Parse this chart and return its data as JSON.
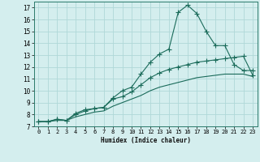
{
  "xlabel": "Humidex (Indice chaleur)",
  "ylabel": "",
  "xlim": [
    -0.5,
    23.5
  ],
  "ylim": [
    7,
    17.5
  ],
  "xticks": [
    0,
    1,
    2,
    3,
    4,
    5,
    6,
    7,
    8,
    9,
    10,
    11,
    12,
    13,
    14,
    15,
    16,
    17,
    18,
    19,
    20,
    21,
    22,
    23
  ],
  "yticks": [
    7,
    8,
    9,
    10,
    11,
    12,
    13,
    14,
    15,
    16,
    17
  ],
  "background_color": "#d4eeee",
  "grid_color": "#b0d8d8",
  "line_color": "#1a6b5a",
  "line1_x": [
    0,
    1,
    2,
    3,
    4,
    5,
    6,
    7,
    8,
    9,
    10,
    11,
    12,
    13,
    14,
    15,
    16,
    17,
    18,
    19,
    20,
    21,
    22,
    23
  ],
  "line1_y": [
    7.4,
    7.4,
    7.6,
    7.5,
    8.1,
    8.4,
    8.5,
    8.6,
    9.4,
    10.0,
    10.3,
    11.4,
    12.4,
    13.1,
    13.5,
    16.6,
    17.2,
    16.5,
    15.0,
    13.8,
    13.8,
    12.2,
    11.7,
    11.7
  ],
  "line2_x": [
    0,
    1,
    2,
    3,
    4,
    5,
    6,
    7,
    8,
    9,
    10,
    11,
    12,
    13,
    14,
    15,
    16,
    17,
    18,
    19,
    20,
    21,
    22,
    23
  ],
  "line2_y": [
    7.4,
    7.4,
    7.6,
    7.5,
    8.0,
    8.3,
    8.5,
    8.6,
    9.3,
    9.5,
    9.9,
    10.5,
    11.1,
    11.5,
    11.8,
    12.0,
    12.2,
    12.4,
    12.5,
    12.6,
    12.7,
    12.8,
    12.9,
    11.3
  ],
  "line3_x": [
    0,
    1,
    2,
    3,
    4,
    5,
    6,
    7,
    8,
    9,
    10,
    11,
    12,
    13,
    14,
    15,
    16,
    17,
    18,
    19,
    20,
    21,
    22,
    23
  ],
  "line3_y": [
    7.4,
    7.4,
    7.5,
    7.5,
    7.8,
    8.0,
    8.2,
    8.3,
    8.7,
    9.0,
    9.3,
    9.6,
    10.0,
    10.3,
    10.5,
    10.7,
    10.9,
    11.1,
    11.2,
    11.3,
    11.4,
    11.4,
    11.4,
    11.2
  ]
}
